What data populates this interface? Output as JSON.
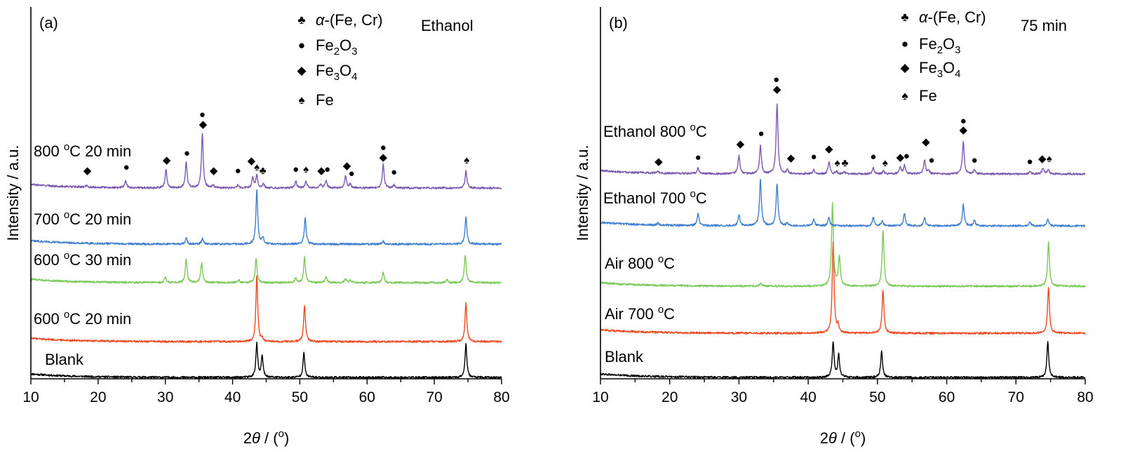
{
  "colors": {
    "black": "#000000",
    "orange": "#ee4a1f",
    "green": "#7cc95a",
    "blue": "#3f7fd0",
    "purple": "#7b5ab4"
  },
  "legend_symbols": {
    "alpha_fe_cr": "♣",
    "fe2o3": "●",
    "fe3o4": "◆",
    "fe": "♠"
  },
  "chart_data": [
    {
      "type": "line",
      "panel_label": "(a)",
      "annotation": "Ethanol",
      "xlabel_pre": "2",
      "xlabel_theta": "θ",
      "xlabel_post": " / (",
      "xlabel_deg": "o",
      "xlabel_close": ")",
      "ylabel": "Intensity / a.u.",
      "xlim": [
        10,
        80
      ],
      "xticks": [
        10,
        20,
        30,
        40,
        50,
        60,
        70,
        80
      ],
      "legend": [
        {
          "symbol": "alpha_fe_cr",
          "greek": "α",
          "text": "-(Fe, Cr)"
        },
        {
          "symbol": "fe2o3",
          "parts": [
            "Fe",
            "2",
            "O",
            "3"
          ]
        },
        {
          "symbol": "fe3o4",
          "parts": [
            "Fe",
            "3",
            "O",
            "4"
          ]
        },
        {
          "symbol": "fe",
          "text": "Fe"
        }
      ],
      "series": [
        {
          "label_pre": "Blank",
          "label_sup": "",
          "label_post": "",
          "color": "black",
          "offset": 0,
          "peaks": [
            [
              43.6,
              48
            ],
            [
              44.4,
              30
            ],
            [
              50.6,
              35
            ],
            [
              74.7,
              48
            ]
          ]
        },
        {
          "label_pre": "600 ",
          "label_sup": "o",
          "label_post": "C 20 min",
          "color": "orange",
          "offset": 1,
          "peaks": [
            [
              43.6,
              95
            ],
            [
              50.7,
              52
            ],
            [
              74.7,
              56
            ],
            [
              44.4,
              4
            ]
          ]
        },
        {
          "label_pre": "600 ",
          "label_sup": "o",
          "label_post": "C 30 min",
          "color": "green",
          "offset": 2,
          "peaks": [
            [
              30.0,
              8
            ],
            [
              33.1,
              34
            ],
            [
              35.4,
              28
            ],
            [
              40.9,
              4
            ],
            [
              43.5,
              35
            ],
            [
              49.4,
              6
            ],
            [
              50.7,
              36
            ],
            [
              53.9,
              9
            ],
            [
              56.8,
              5
            ],
            [
              57.5,
              4
            ],
            [
              62.4,
              15
            ],
            [
              71.9,
              4
            ],
            [
              74.6,
              40
            ]
          ]
        },
        {
          "label_pre": "700 ",
          "label_sup": "o",
          "label_post": "C 20 min",
          "color": "blue",
          "offset": 3,
          "peaks": [
            [
              33.1,
              9
            ],
            [
              35.5,
              8
            ],
            [
              43.6,
              77
            ],
            [
              44.5,
              9
            ],
            [
              50.8,
              38
            ],
            [
              62.4,
              4
            ],
            [
              74.7,
              40
            ]
          ]
        },
        {
          "label_pre": "800 ",
          "label_sup": "o",
          "label_post": "C 20 min",
          "color": "purple",
          "offset": 4,
          "peaks": [
            [
              18.3,
              3
            ],
            [
              24.1,
              10
            ],
            [
              30.1,
              26
            ],
            [
              33.1,
              36
            ],
            [
              35.5,
              77
            ],
            [
              37.1,
              4
            ],
            [
              40.8,
              4
            ],
            [
              43.0,
              15
            ],
            [
              43.6,
              18
            ],
            [
              44.6,
              6
            ],
            [
              49.4,
              10
            ],
            [
              50.9,
              10
            ],
            [
              53.1,
              6
            ],
            [
              53.9,
              11
            ],
            [
              56.8,
              18
            ],
            [
              57.5,
              6
            ],
            [
              62.4,
              34
            ],
            [
              64.0,
              4
            ],
            [
              74.7,
              24
            ]
          ]
        }
      ],
      "markers": [
        {
          "s": "fe3o4",
          "x": 18.4,
          "y": 248
        },
        {
          "s": "fe2o3",
          "x": 24.2,
          "y": 243
        },
        {
          "s": "fe3o4",
          "x": 30.2,
          "y": 233
        },
        {
          "s": "fe2o3",
          "x": 33.2,
          "y": 223
        },
        {
          "s": "fe2o3",
          "x": 35.5,
          "y": 168
        },
        {
          "s": "fe3o4",
          "x": 35.6,
          "y": 182
        },
        {
          "s": "fe3o4",
          "x": 37.2,
          "y": 248
        },
        {
          "s": "fe2o3",
          "x": 40.8,
          "y": 248
        },
        {
          "s": "fe3o4",
          "x": 42.8,
          "y": 234
        },
        {
          "s": "fe",
          "x": 43.6,
          "y": 243
        },
        {
          "s": "alpha_fe_cr",
          "x": 44.5,
          "y": 248
        },
        {
          "s": "fe2o3",
          "x": 49.4,
          "y": 246
        },
        {
          "s": "fe",
          "x": 50.9,
          "y": 246
        },
        {
          "s": "fe3o4",
          "x": 53.2,
          "y": 248
        },
        {
          "s": "fe2o3",
          "x": 54.1,
          "y": 246
        },
        {
          "s": "fe3o4",
          "x": 57.0,
          "y": 241
        },
        {
          "s": "fe2o3",
          "x": 57.7,
          "y": 252
        },
        {
          "s": "fe2o3",
          "x": 62.4,
          "y": 215
        },
        {
          "s": "fe3o4",
          "x": 62.4,
          "y": 229
        },
        {
          "s": "fe2o3",
          "x": 64.0,
          "y": 250
        },
        {
          "s": "fe",
          "x": 74.8,
          "y": 233
        }
      ]
    },
    {
      "type": "line",
      "panel_label": "(b)",
      "annotation": "75 min",
      "xlabel_pre": "2",
      "xlabel_theta": "θ",
      "xlabel_post": " / (",
      "xlabel_deg": "o",
      "xlabel_close": ")",
      "ylabel": "Intensity / a.u.",
      "xlim": [
        10,
        80
      ],
      "xticks": [
        10,
        20,
        30,
        40,
        50,
        60,
        70,
        80
      ],
      "legend": [
        {
          "symbol": "alpha_fe_cr",
          "greek": "α",
          "text": "-(Fe, Cr)"
        },
        {
          "symbol": "fe2o3",
          "parts": [
            "Fe",
            "2",
            "O",
            "3"
          ]
        },
        {
          "symbol": "fe3o4",
          "parts": [
            "Fe",
            "3",
            "O",
            "4"
          ]
        },
        {
          "symbol": "fe",
          "text": "Fe"
        }
      ],
      "series": [
        {
          "label_pre": "Blank",
          "label_sup": "",
          "label_post": "",
          "color": "black",
          "offset": 0,
          "peaks": [
            [
              43.6,
              50
            ],
            [
              44.4,
              32
            ],
            [
              50.6,
              38
            ],
            [
              74.6,
              50
            ]
          ]
        },
        {
          "label_pre": "Air 700 ",
          "label_sup": "o",
          "label_post": "C",
          "color": "orange",
          "offset": 1,
          "peaks": [
            [
              43.6,
              130
            ],
            [
              44.3,
              10
            ],
            [
              50.8,
              62
            ],
            [
              74.7,
              66
            ]
          ]
        },
        {
          "label_pre": "Air 800 ",
          "label_sup": "o",
          "label_post": "C",
          "color": "green",
          "offset": 2,
          "peaks": [
            [
              33.1,
              4
            ],
            [
              43.5,
              118
            ],
            [
              44.5,
              42
            ],
            [
              50.8,
              80
            ],
            [
              74.7,
              62
            ]
          ]
        },
        {
          "label_pre": "Ethanol 700 ",
          "label_sup": "o",
          "label_post": "C",
          "color": "blue",
          "offset": 3,
          "peaks": [
            [
              18.3,
              3
            ],
            [
              24.1,
              18
            ],
            [
              30.0,
              16
            ],
            [
              33.1,
              66
            ],
            [
              35.5,
              60
            ],
            [
              37.0,
              4
            ],
            [
              40.8,
              10
            ],
            [
              43.0,
              12
            ],
            [
              49.4,
              12
            ],
            [
              50.7,
              8
            ],
            [
              53.9,
              18
            ],
            [
              56.8,
              12
            ],
            [
              62.4,
              30
            ],
            [
              64.0,
              8
            ],
            [
              72.0,
              6
            ],
            [
              74.6,
              10
            ]
          ]
        },
        {
          "label_pre": "Ethanol 800 ",
          "label_sup": "o",
          "label_post": "C",
          "color": "purple",
          "offset": 4,
          "peaks": [
            [
              18.3,
              3
            ],
            [
              24.1,
              8
            ],
            [
              30.0,
              26
            ],
            [
              33.1,
              40
            ],
            [
              35.5,
              100
            ],
            [
              37.0,
              6
            ],
            [
              40.8,
              6
            ],
            [
              43.0,
              18
            ],
            [
              44.1,
              4
            ],
            [
              45.2,
              3
            ],
            [
              49.4,
              8
            ],
            [
              50.9,
              4
            ],
            [
              53.3,
              10
            ],
            [
              53.9,
              12
            ],
            [
              56.8,
              20
            ],
            [
              57.4,
              4
            ],
            [
              62.4,
              46
            ],
            [
              64.0,
              6
            ],
            [
              72.0,
              3
            ],
            [
              73.9,
              8
            ],
            [
              74.7,
              6
            ]
          ]
        }
      ],
      "markers": [
        {
          "s": "fe3o4",
          "x": 18.4,
          "y": 235
        },
        {
          "s": "fe2o3",
          "x": 24.1,
          "y": 229
        },
        {
          "s": "fe3o4",
          "x": 30.2,
          "y": 210
        },
        {
          "s": "fe2o3",
          "x": 33.2,
          "y": 195
        },
        {
          "s": "fe2o3",
          "x": 35.4,
          "y": 118
        },
        {
          "s": "fe3o4",
          "x": 35.5,
          "y": 132
        },
        {
          "s": "fe3o4",
          "x": 37.5,
          "y": 230
        },
        {
          "s": "fe2o3",
          "x": 40.8,
          "y": 228
        },
        {
          "s": "fe3o4",
          "x": 43.0,
          "y": 217
        },
        {
          "s": "fe",
          "x": 44.2,
          "y": 237
        },
        {
          "s": "alpha_fe_cr",
          "x": 45.3,
          "y": 237
        },
        {
          "s": "fe2o3",
          "x": 49.4,
          "y": 228
        },
        {
          "s": "fe",
          "x": 51.1,
          "y": 237
        },
        {
          "s": "fe3o4",
          "x": 53.3,
          "y": 229
        },
        {
          "s": "fe2o3",
          "x": 54.2,
          "y": 227
        },
        {
          "s": "fe3o4",
          "x": 57.0,
          "y": 207
        },
        {
          "s": "fe2o3",
          "x": 57.8,
          "y": 233
        },
        {
          "s": "fe2o3",
          "x": 62.4,
          "y": 177
        },
        {
          "s": "fe3o4",
          "x": 62.4,
          "y": 190
        },
        {
          "s": "fe2o3",
          "x": 64.0,
          "y": 233
        },
        {
          "s": "fe2o3",
          "x": 72.0,
          "y": 235
        },
        {
          "s": "fe3o4",
          "x": 73.8,
          "y": 231
        },
        {
          "s": "fe",
          "x": 74.8,
          "y": 231
        }
      ]
    }
  ]
}
